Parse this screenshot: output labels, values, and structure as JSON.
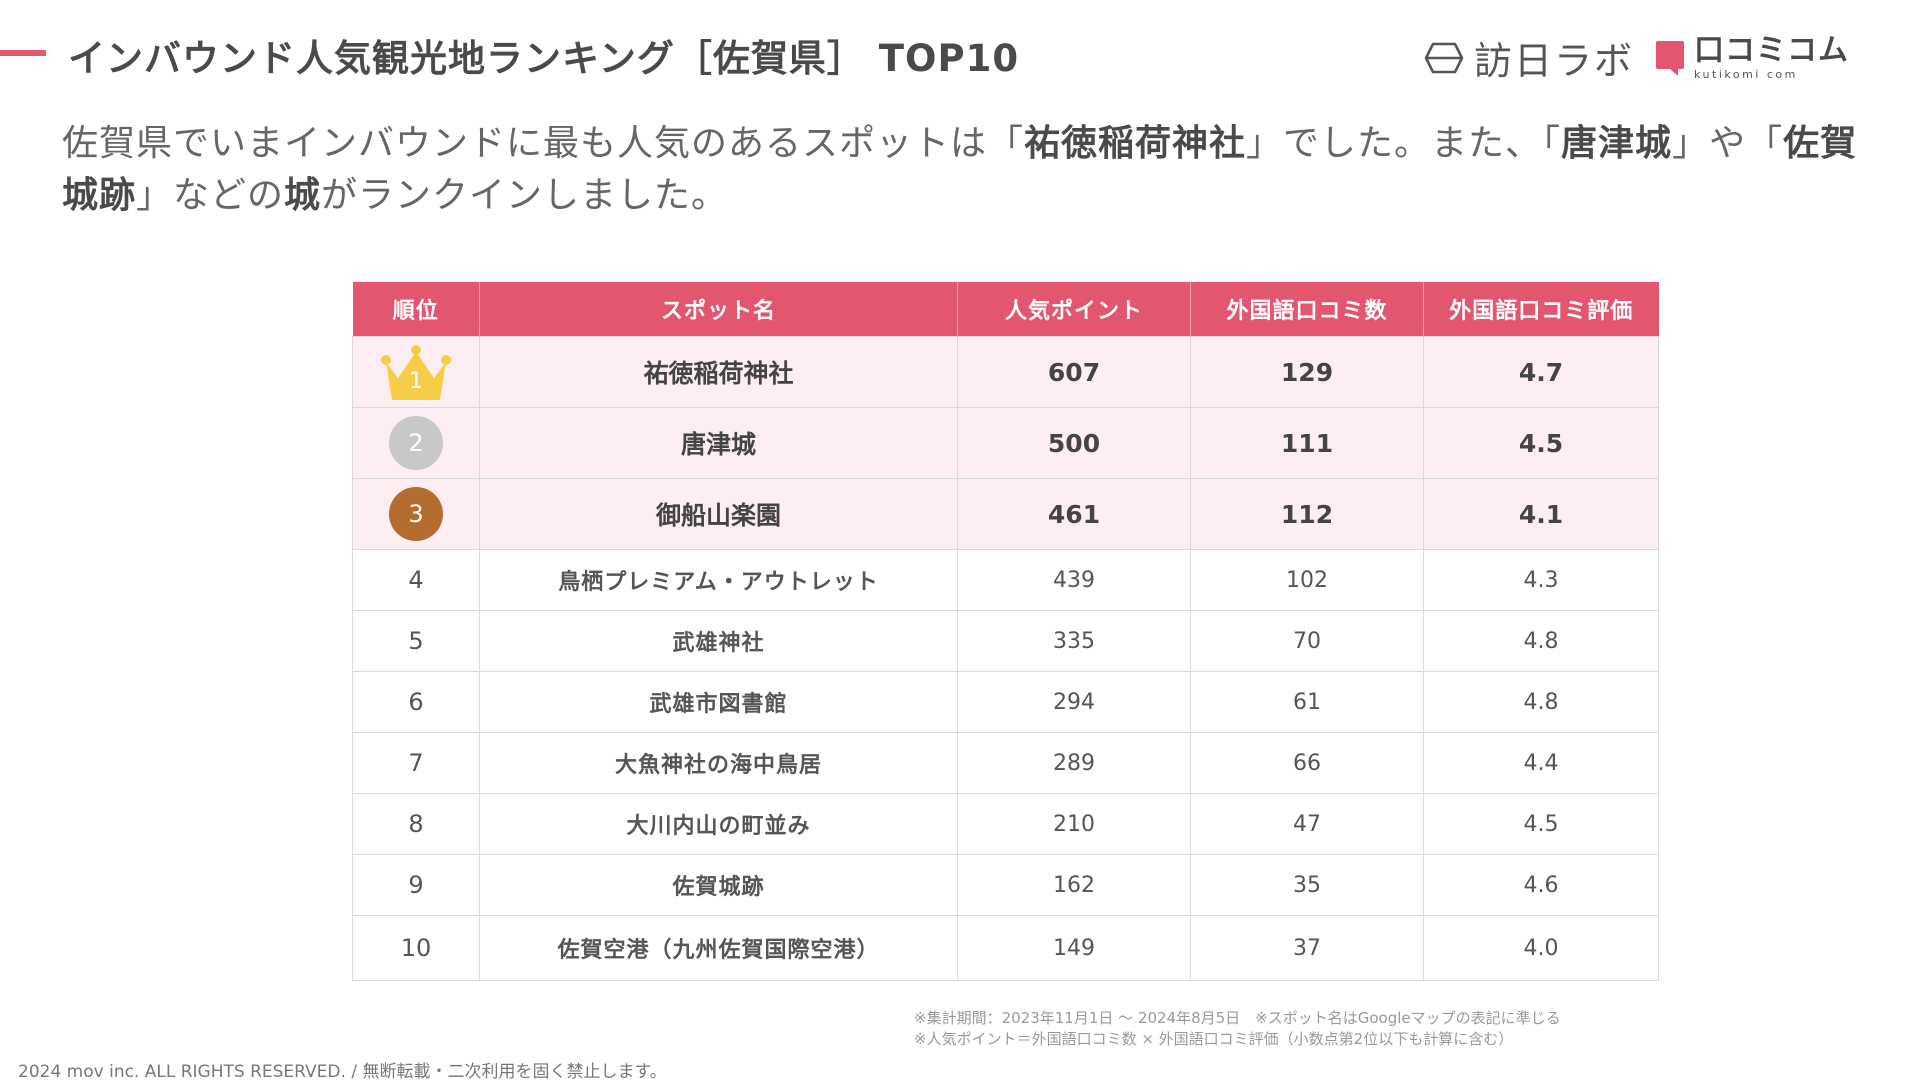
{
  "header": {
    "title": "インバウンド人気観光地ランキング［佐賀県］ TOP10",
    "logo_houniti": "訪日ラボ",
    "logo_kuchikomi": "口コミコム",
    "logo_kuchikomi_sub": "kutikomi com",
    "accent_color": "#e2566f"
  },
  "lead": {
    "part1": "佐賀県でいまインバウンドに最も人気のあるスポットは「",
    "highlight1": "祐徳稲荷神社",
    "part2": "」でした。また、「",
    "highlight2": "唐津城",
    "part3": "」や「",
    "highlight3": "佐賀城跡",
    "part4": "」などの",
    "highlight4": "城",
    "part5": "がランクインしました。"
  },
  "table": {
    "headers": [
      "順位",
      "スポット名",
      "人気ポイント",
      "外国語口コミ数",
      "外国語口コミ評価"
    ],
    "rows": [
      {
        "rank": "1",
        "name": "祐徳稲荷神社",
        "points": "607",
        "reviews": "129",
        "rating": "4.7"
      },
      {
        "rank": "2",
        "name": "唐津城",
        "points": "500",
        "reviews": "111",
        "rating": "4.5"
      },
      {
        "rank": "3",
        "name": "御船山楽園",
        "points": "461",
        "reviews": "112",
        "rating": "4.1"
      },
      {
        "rank": "4",
        "name": "鳥栖プレミアム・アウトレット",
        "points": "439",
        "reviews": "102",
        "rating": "4.3"
      },
      {
        "rank": "5",
        "name": "武雄神社",
        "points": "335",
        "reviews": "70",
        "rating": "4.8"
      },
      {
        "rank": "6",
        "name": "武雄市図書館",
        "points": "294",
        "reviews": "61",
        "rating": "4.8"
      },
      {
        "rank": "7",
        "name": "大魚神社の海中鳥居",
        "points": "289",
        "reviews": "66",
        "rating": "4.4"
      },
      {
        "rank": "8",
        "name": "大川内山の町並み",
        "points": "210",
        "reviews": "47",
        "rating": "4.5"
      },
      {
        "rank": "9",
        "name": "佐賀城跡",
        "points": "162",
        "reviews": "35",
        "rating": "4.6"
      },
      {
        "rank": "10",
        "name": "佐賀空港（九州佐賀国際空港）",
        "points": "149",
        "reviews": "37",
        "rating": "4.0"
      }
    ],
    "header_color": "#e2566f",
    "top3_row_color": "#fdeef2",
    "medal_colors": {
      "gold": "#f6cd46",
      "silver": "#c8c8c8",
      "bronze": "#b56d2f"
    }
  },
  "notes": {
    "line1": "※集計期間：2023年11月1日 〜 2024年8月5日　※スポット名はGoogleマップの表記に準じる",
    "line2": "※人気ポイント＝外国語口コミ数 × 外国語口コミ評価（小数点第2位以下も計算に含む）"
  },
  "footer": {
    "copyright": "2024 mov inc. ALL RIGHTS RESERVED. / 無断転載・二次利用を固く禁止します。"
  }
}
